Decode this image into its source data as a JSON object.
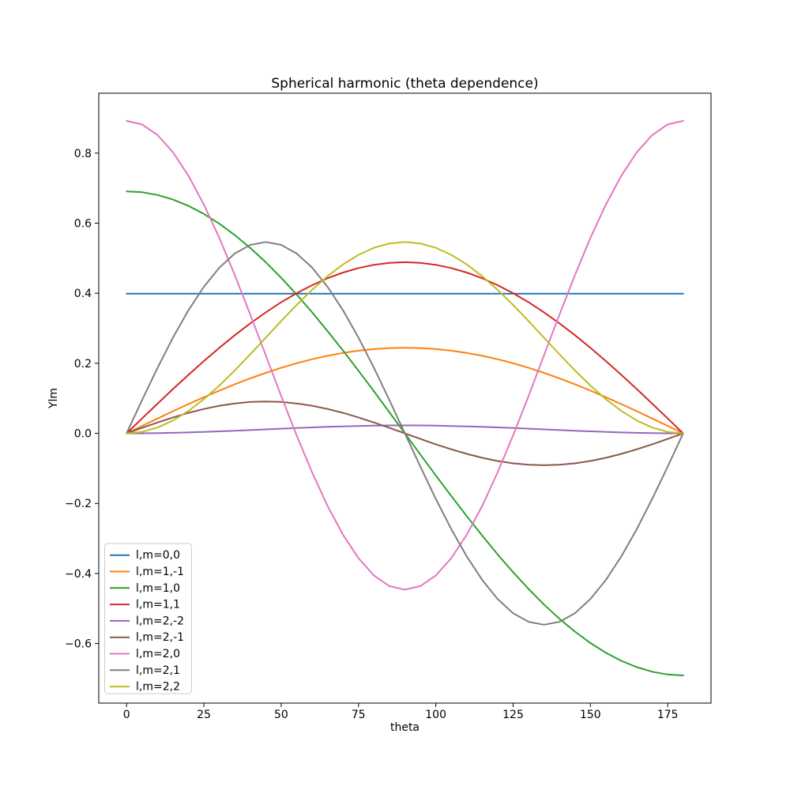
{
  "chart_data": {
    "type": "line",
    "title": "Spherical harmonic (theta dependence)",
    "xlabel": "theta",
    "ylabel": "Ylm",
    "xlim": [
      -9,
      189
    ],
    "ylim": [
      -0.77,
      0.971
    ],
    "grid": false,
    "legend_position": "lower left",
    "xticks": [
      0,
      25,
      50,
      75,
      100,
      125,
      150,
      175
    ],
    "xticklabels": [
      "0",
      "25",
      "50",
      "75",
      "100",
      "125",
      "150",
      "175"
    ],
    "yticks": [
      -0.6,
      -0.4,
      -0.2,
      0.0,
      0.2,
      0.4,
      0.6,
      0.8
    ],
    "yticklabels": [
      "−0.6",
      "−0.4",
      "−0.2",
      "0.0",
      "0.2",
      "0.4",
      "0.6",
      "0.8"
    ],
    "x": [
      0,
      5,
      10,
      15,
      20,
      25,
      30,
      35,
      40,
      45,
      50,
      55,
      60,
      65,
      70,
      75,
      80,
      85,
      90,
      95,
      100,
      105,
      110,
      115,
      120,
      125,
      130,
      135,
      140,
      145,
      150,
      155,
      160,
      165,
      170,
      175,
      180
    ],
    "series": [
      {
        "name": "l,m=0,0",
        "color": "#1f77b4",
        "values": [
          0.3989,
          0.3989,
          0.3989,
          0.3989,
          0.3989,
          0.3989,
          0.3989,
          0.3989,
          0.3989,
          0.3989,
          0.3989,
          0.3989,
          0.3989,
          0.3989,
          0.3989,
          0.3989,
          0.3989,
          0.3989,
          0.3989,
          0.3989,
          0.3989,
          0.3989,
          0.3989,
          0.3989,
          0.3989,
          0.3989,
          0.3989,
          0.3989,
          0.3989,
          0.3989,
          0.3989,
          0.3989,
          0.3989,
          0.3989,
          0.3989,
          0.3989,
          0.3989
        ]
      },
      {
        "name": "l,m=1,-1",
        "color": "#ff7f0e",
        "values": [
          0,
          0.0213,
          0.0424,
          0.0632,
          0.0836,
          0.1032,
          0.1222,
          0.1401,
          0.157,
          0.1727,
          0.1871,
          0.2001,
          0.2116,
          0.2214,
          0.2296,
          0.236,
          0.2406,
          0.2434,
          0.2443,
          0.2434,
          0.2406,
          0.236,
          0.2296,
          0.2214,
          0.2116,
          0.2001,
          0.1871,
          0.1727,
          0.157,
          0.1401,
          0.1222,
          0.1032,
          0.0836,
          0.0632,
          0.0424,
          0.0213,
          0
        ]
      },
      {
        "name": "l,m=1,0",
        "color": "#2ca02c",
        "values": [
          0.691,
          0.6884,
          0.6805,
          0.6675,
          0.6493,
          0.6263,
          0.5984,
          0.566,
          0.5293,
          0.4886,
          0.4442,
          0.3963,
          0.3455,
          0.292,
          0.2363,
          0.1788,
          0.12,
          0.0602,
          0,
          -0.0602,
          -0.12,
          -0.1788,
          -0.2363,
          -0.292,
          -0.3455,
          -0.3963,
          -0.4442,
          -0.4886,
          -0.5293,
          -0.566,
          -0.5984,
          -0.6263,
          -0.6493,
          -0.6675,
          -0.6805,
          -0.6884,
          -0.691
        ]
      },
      {
        "name": "l,m=1,1",
        "color": "#d62728",
        "values": [
          0,
          0.0426,
          0.0848,
          0.1265,
          0.1671,
          0.2065,
          0.2443,
          0.2802,
          0.3141,
          0.3455,
          0.3743,
          0.4002,
          0.4231,
          0.4428,
          0.4591,
          0.472,
          0.4812,
          0.4867,
          0.4886,
          0.4867,
          0.4812,
          0.472,
          0.4591,
          0.4428,
          0.4231,
          0.4002,
          0.3743,
          0.3455,
          0.3141,
          0.2802,
          0.2443,
          0.2065,
          0.1671,
          0.1265,
          0.0848,
          0.0426,
          0
        ]
      },
      {
        "name": "l,m=2,-2",
        "color": "#9467bd",
        "values": [
          0,
          0.0002,
          0.0007,
          0.0015,
          0.0027,
          0.0041,
          0.0057,
          0.0075,
          0.0094,
          0.0114,
          0.0134,
          0.0153,
          0.0171,
          0.0187,
          0.0201,
          0.0212,
          0.0221,
          0.0226,
          0.0228,
          0.0226,
          0.0221,
          0.0212,
          0.0201,
          0.0187,
          0.0171,
          0.0153,
          0.0134,
          0.0114,
          0.0094,
          0.0075,
          0.0057,
          0.0041,
          0.0027,
          0.0015,
          0.0007,
          0.0002,
          0
        ]
      },
      {
        "name": "l,m=2,-1",
        "color": "#8c564b",
        "values": [
          0,
          0.0158,
          0.0311,
          0.0455,
          0.0585,
          0.0697,
          0.0788,
          0.0855,
          0.0896,
          0.091,
          0.0896,
          0.0855,
          0.0788,
          0.0697,
          0.0585,
          0.0455,
          0.0311,
          0.0158,
          0,
          -0.0158,
          -0.0311,
          -0.0455,
          -0.0585,
          -0.0697,
          -0.0788,
          -0.0855,
          -0.0896,
          -0.091,
          -0.0896,
          -0.0855,
          -0.0788,
          -0.0697,
          -0.0585,
          -0.0455,
          -0.0311,
          -0.0158,
          0
        ]
      },
      {
        "name": "l,m=2,0",
        "color": "#e377c2",
        "values": [
          0.8921,
          0.8819,
          0.8518,
          0.8025,
          0.7356,
          0.6531,
          0.5576,
          0.4519,
          0.3392,
          0.223,
          0.1068,
          -0.0058,
          -0.1115,
          -0.2071,
          -0.2895,
          -0.3564,
          -0.4057,
          -0.4359,
          -0.4461,
          -0.4359,
          -0.4057,
          -0.3564,
          -0.2895,
          -0.2071,
          -0.1115,
          -0.0058,
          0.1068,
          0.223,
          0.3392,
          0.4519,
          0.5576,
          0.6531,
          0.7356,
          0.8025,
          0.8518,
          0.8819,
          0.8921
        ]
      },
      {
        "name": "l,m=2,1",
        "color": "#7f7f7f",
        "values": [
          0,
          0.0949,
          0.1868,
          0.2732,
          0.3512,
          0.4185,
          0.4731,
          0.5134,
          0.538,
          0.5463,
          0.538,
          0.5134,
          0.4731,
          0.4185,
          0.3512,
          0.2732,
          0.1868,
          0.0949,
          0,
          -0.0949,
          -0.1868,
          -0.2732,
          -0.3512,
          -0.4185,
          -0.4731,
          -0.5134,
          -0.538,
          -0.5463,
          -0.538,
          -0.5134,
          -0.4731,
          -0.4185,
          -0.3512,
          -0.2732,
          -0.1868,
          -0.0949,
          0
        ]
      },
      {
        "name": "l,m=2,2",
        "color": "#bcbd22",
        "values": [
          0,
          0.0042,
          0.0165,
          0.0366,
          0.0639,
          0.0976,
          0.1366,
          0.1797,
          0.2257,
          0.2732,
          0.3206,
          0.3666,
          0.4097,
          0.4487,
          0.4824,
          0.5097,
          0.5298,
          0.5421,
          0.5463,
          0.5421,
          0.5298,
          0.5097,
          0.4824,
          0.4487,
          0.4097,
          0.3666,
          0.3206,
          0.2732,
          0.2257,
          0.1797,
          0.1366,
          0.0976,
          0.0639,
          0.0366,
          0.0165,
          0.0042,
          0
        ]
      }
    ],
    "colors": {
      "axes_edge": "#000000",
      "text": "#000000",
      "legend_edge": "#cccccc",
      "legend_face": "#ffffff",
      "background": "#ffffff"
    }
  }
}
